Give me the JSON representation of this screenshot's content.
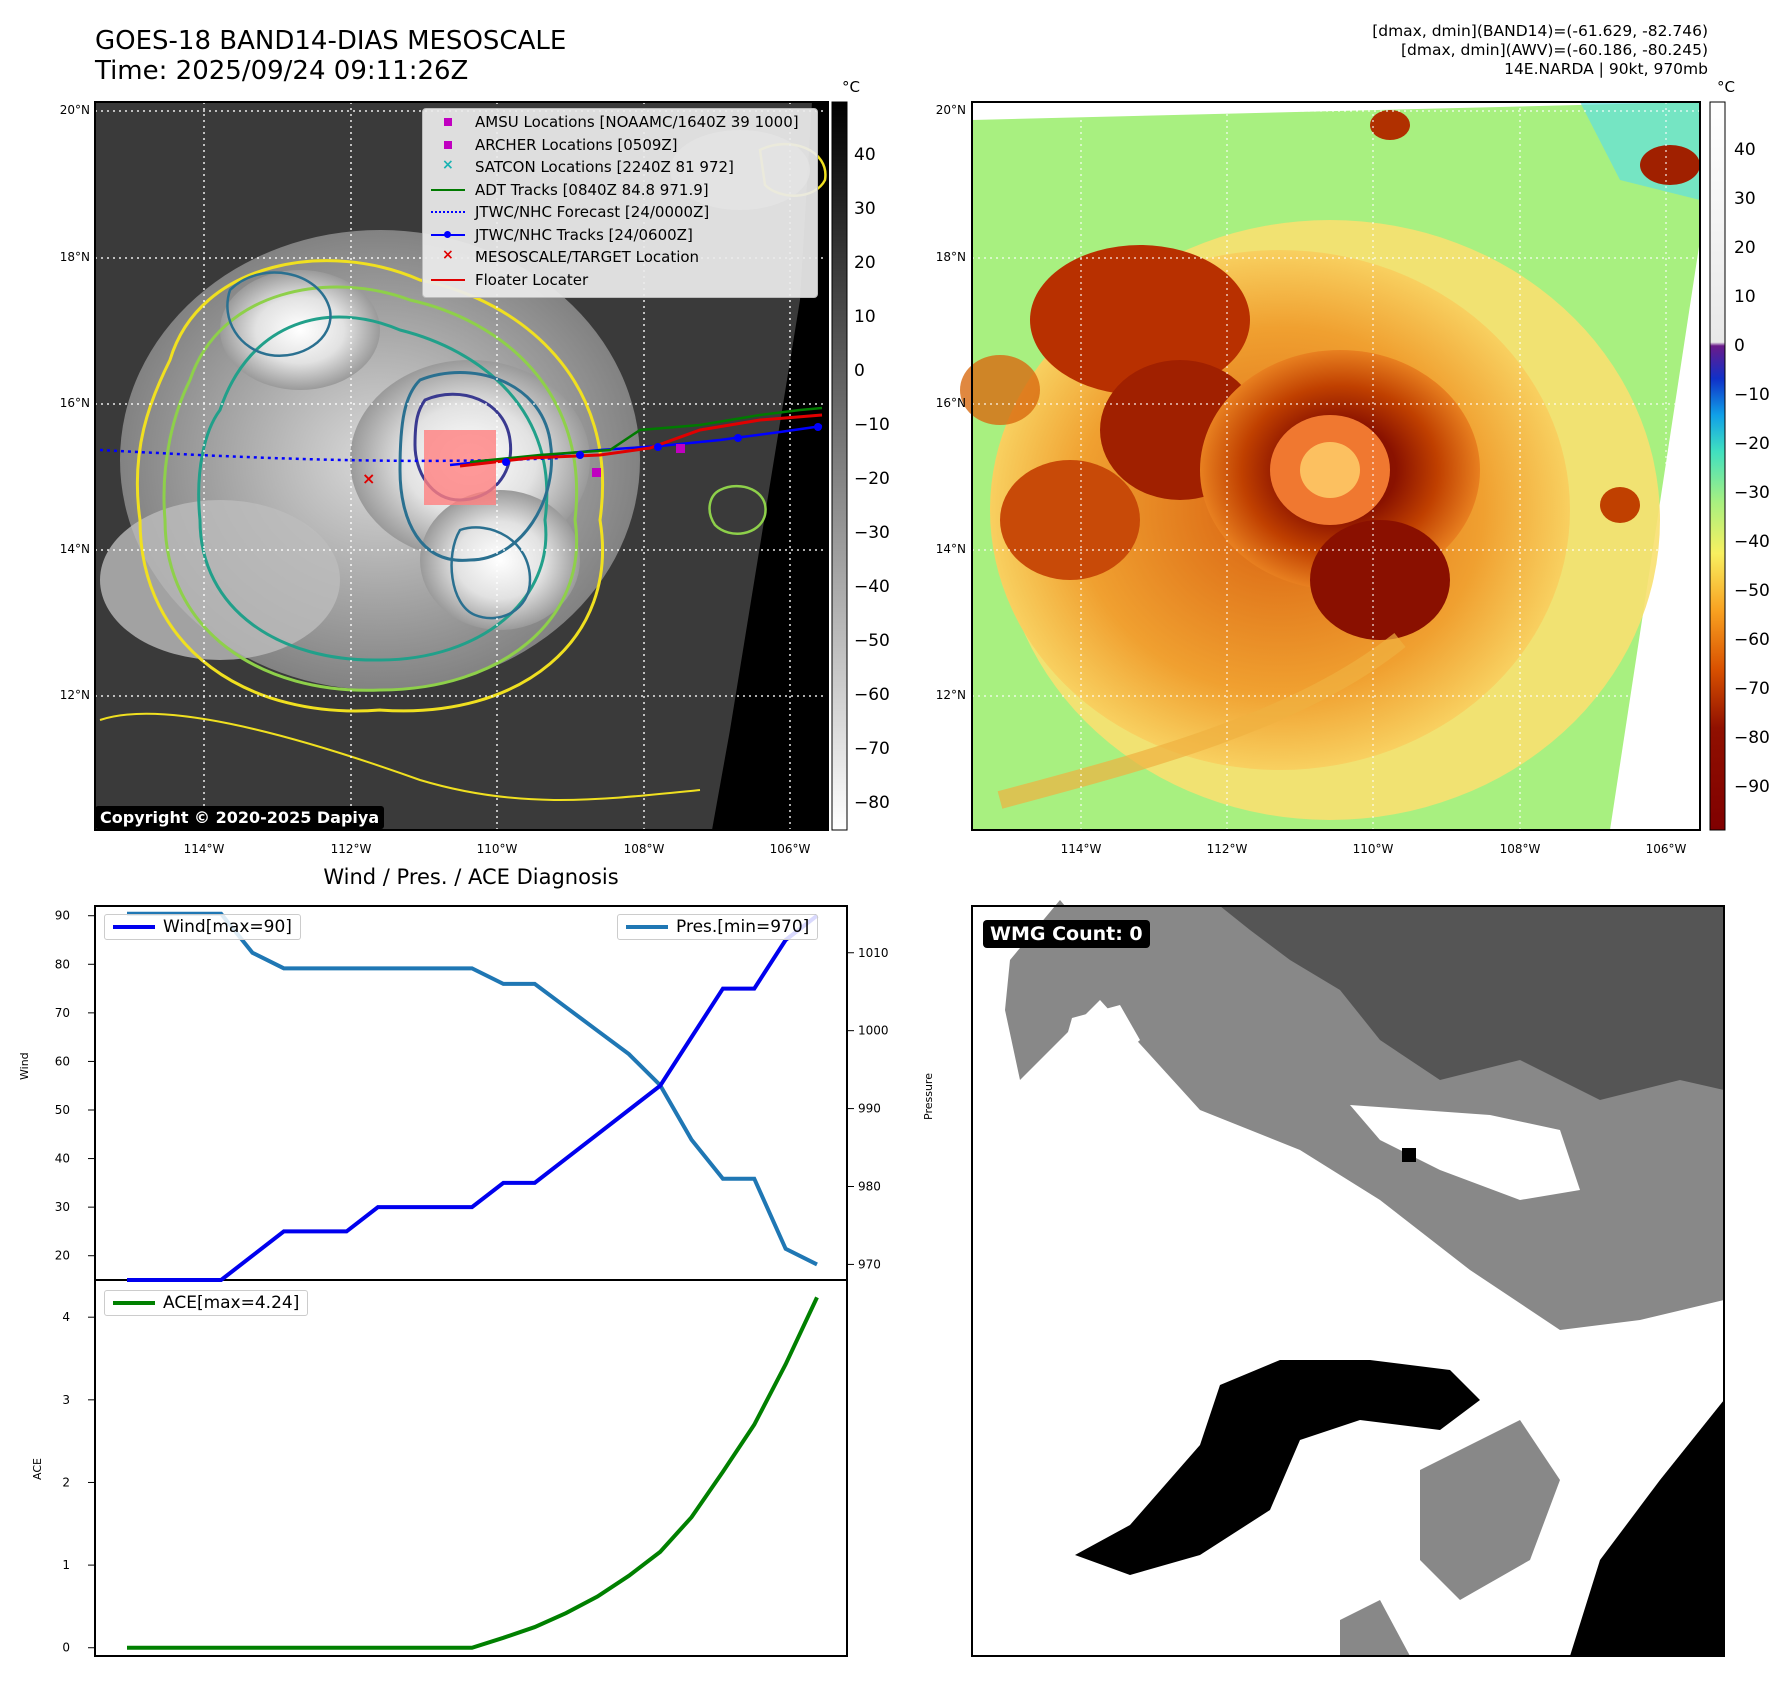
{
  "header": {
    "title": "GOES-18 BAND14-DIAS MESOSCALE",
    "time": "Time: 2025/09/24 09:11:26Z",
    "stats_band14": "[dmax, dmin](BAND14)=(-61.629, -82.746)",
    "stats_awv": "[dmax, dmin](AWV)=(-60.186, -80.245)",
    "storm": "14E.NARDA | 90kt, 970mb"
  },
  "map": {
    "lon_ticks": [
      "114°W",
      "112°W",
      "110°W",
      "108°W",
      "106°W"
    ],
    "lat_ticks": [
      "20°N",
      "18°N",
      "16°N",
      "14°N",
      "12°N"
    ],
    "copyright": "Copyright © 2020-2025 Dapiya",
    "legend": [
      {
        "label": "AMSU Locations [NOAAMC/1640Z 39 1000]",
        "symbol": "square",
        "color": "#c000c0"
      },
      {
        "label": "ARCHER Locations [0509Z]",
        "symbol": "square",
        "color": "#c000c0"
      },
      {
        "label": "SATCON Locations [2240Z 81 972]",
        "symbol": "x",
        "color": "#19b3b3"
      },
      {
        "label": "ADT Tracks [0840Z 84.8 971.9]",
        "symbol": "line",
        "color": "#007a00"
      },
      {
        "label": "JTWC/NHC Forecast [24/0000Z]",
        "symbol": "dotted",
        "color": "#0000ff"
      },
      {
        "label": "JTWC/NHC Tracks [24/0600Z]",
        "symbol": "line-dot",
        "color": "#0000ff"
      },
      {
        "label": "MESOSCALE/TARGET Location",
        "symbol": "x",
        "color": "#e00000"
      },
      {
        "label": "Floater Locater",
        "symbol": "line",
        "color": "#e00000"
      }
    ]
  },
  "colorbar_gray": {
    "unit": "°C",
    "ticks": [
      "40",
      "30",
      "20",
      "10",
      "0",
      "−10",
      "−20",
      "−30",
      "−40",
      "−50",
      "−60",
      "−70",
      "−80"
    ]
  },
  "colorbar_color": {
    "unit": "°C",
    "ticks": [
      "40",
      "30",
      "20",
      "10",
      "0",
      "−10",
      "−20",
      "−30",
      "−40",
      "−50",
      "−60",
      "−70",
      "−80",
      "−90"
    ]
  },
  "wmg": {
    "badge": "WMG Count: 0"
  },
  "chart_data": [
    {
      "type": "line",
      "title": "Wind / Pres. / ACE Diagnosis",
      "ylabel": "Wind",
      "ylabel_right": "Pressure",
      "ylim": [
        15,
        92
      ],
      "ylim_right": [
        968,
        1016
      ],
      "yticks": [
        20,
        30,
        40,
        50,
        60,
        70,
        80,
        90
      ],
      "yticks_right": [
        970,
        980,
        990,
        1000,
        1010
      ],
      "x": [
        0,
        1,
        2,
        3,
        4,
        5,
        6,
        7,
        8,
        9,
        10,
        11,
        12,
        13,
        14,
        15,
        16,
        17,
        18,
        19,
        20,
        21,
        22
      ],
      "series": [
        {
          "name": "Wind[max=90]",
          "color": "#0000ee",
          "axis": "left",
          "values": [
            15,
            15,
            15,
            15,
            20,
            25,
            25,
            25,
            30,
            30,
            30,
            30,
            35,
            35,
            40,
            45,
            50,
            55,
            65,
            75,
            75,
            85,
            90
          ]
        },
        {
          "name": "Pres.[min=970]",
          "color": "#1f77b4",
          "axis": "right",
          "values": [
            1015,
            1015,
            1015,
            1015,
            1010,
            1008,
            1008,
            1008,
            1008,
            1008,
            1008,
            1008,
            1006,
            1006,
            1003,
            1000,
            997,
            993,
            986,
            981,
            981,
            972,
            970
          ]
        }
      ]
    },
    {
      "type": "line",
      "ylabel": "ACE",
      "ylim": [
        -0.1,
        4.45
      ],
      "yticks": [
        0,
        1,
        2,
        3,
        4
      ],
      "x": [
        0,
        1,
        2,
        3,
        4,
        5,
        6,
        7,
        8,
        9,
        10,
        11,
        12,
        13,
        14,
        15,
        16,
        17,
        18,
        19,
        20,
        21,
        22
      ],
      "series": [
        {
          "name": "ACE[max=4.24]",
          "color": "#008000",
          "values": [
            0,
            0,
            0,
            0,
            0,
            0,
            0,
            0,
            0,
            0,
            0,
            0,
            0.12,
            0.25,
            0.42,
            0.62,
            0.87,
            1.16,
            1.58,
            2.13,
            2.7,
            3.43,
            4.24
          ]
        }
      ]
    }
  ]
}
